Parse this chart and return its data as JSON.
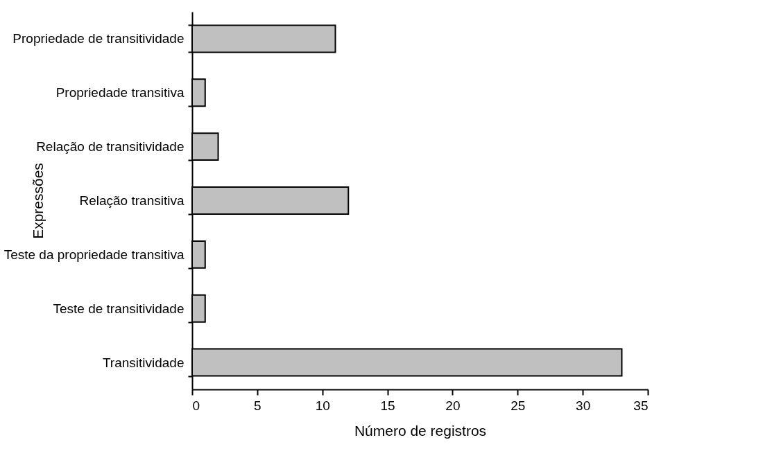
{
  "chart_data": {
    "type": "bar",
    "orientation": "horizontal",
    "xlabel": "Número de registros",
    "ylabel": "Expressões",
    "categories": [
      "Propriedade de transitividade",
      "Propriedade transitiva",
      "Relação de transitividade",
      "Relação transitiva",
      "Teste da propriedade transitiva",
      "Teste de transitividade",
      "Transitividade"
    ],
    "values": [
      11,
      1,
      2,
      12,
      1,
      1,
      33
    ],
    "color": "#c0c0c0",
    "xlim": [
      0,
      35
    ],
    "xticks": [
      0,
      5,
      10,
      15,
      20,
      25,
      30,
      35
    ],
    "grid": false
  }
}
